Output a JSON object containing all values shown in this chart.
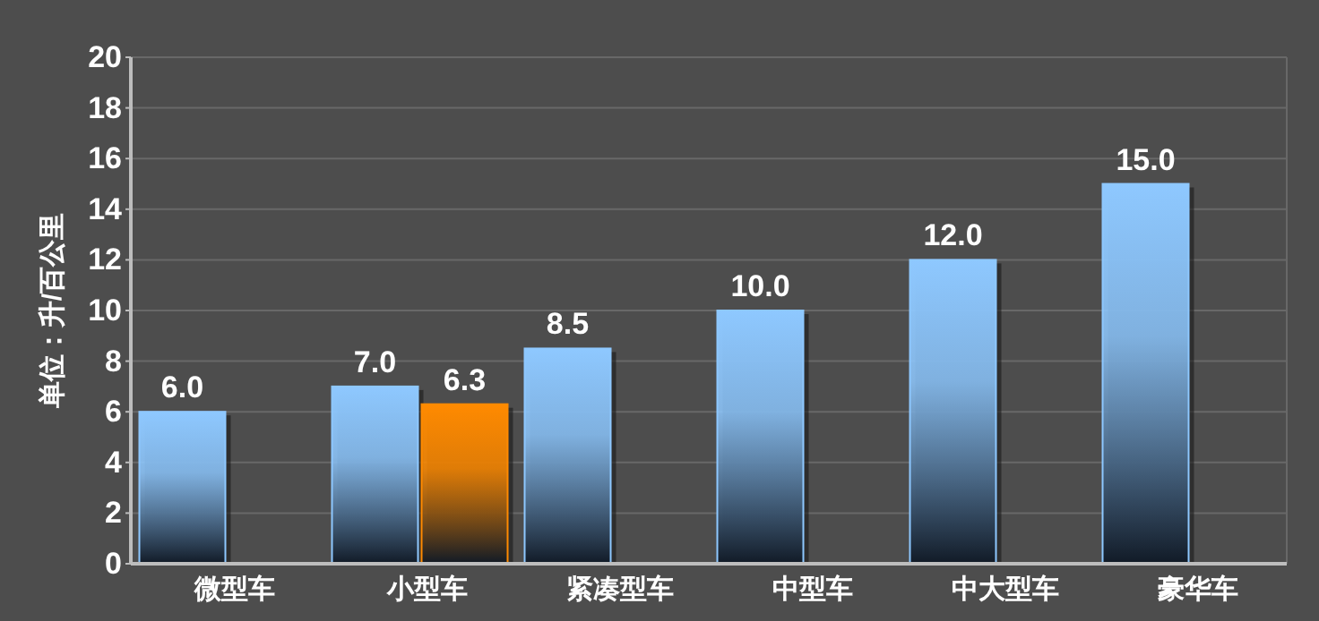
{
  "chart_data": {
    "type": "bar",
    "ylabel": "单位：升/百公里",
    "categories": [
      "微型车",
      "小型车",
      "紧凑型车",
      "中型车",
      "中大型车",
      "豪华车"
    ],
    "series": [
      {
        "color": "#8ec8ff",
        "values": [
          6.0,
          7.0,
          8.5,
          10.0,
          12.0,
          15.0
        ],
        "value_labels": [
          "6.0",
          "7.0",
          "8.5",
          "10.0",
          "12.0",
          "15.0"
        ]
      },
      {
        "color": "#ff8a00",
        "values": [
          null,
          6.3,
          null,
          null,
          null,
          null
        ],
        "value_labels": [
          null,
          "6.3",
          null,
          null,
          null,
          null
        ]
      }
    ],
    "ylim": [
      0,
      20
    ],
    "yticks": [
      0,
      2,
      4,
      6,
      8,
      10,
      12,
      14,
      16,
      18,
      20
    ],
    "grid": "y"
  }
}
